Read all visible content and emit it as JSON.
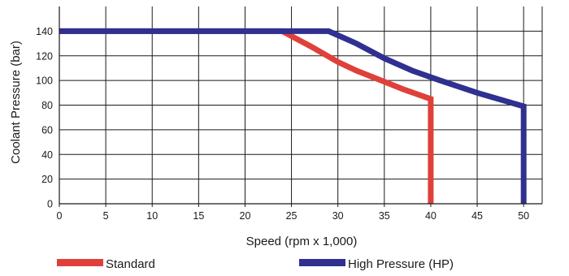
{
  "chart_data": {
    "type": "line",
    "xlabel": "Speed (rpm x 1,000)",
    "ylabel": "Coolant Pressure (bar)",
    "xlim": [
      0,
      52
    ],
    "ylim": [
      0,
      160
    ],
    "x_ticks": [
      0,
      5,
      10,
      15,
      20,
      25,
      30,
      35,
      40,
      45,
      50
    ],
    "y_ticks": [
      0,
      20,
      40,
      60,
      80,
      100,
      120,
      140
    ],
    "grid": true,
    "legend_position": "bottom",
    "series": [
      {
        "name": "Standard",
        "color": "#e0403a",
        "points": [
          [
            0,
            140
          ],
          [
            24,
            140
          ],
          [
            27,
            128
          ],
          [
            30,
            115
          ],
          [
            32,
            108
          ],
          [
            35,
            99
          ],
          [
            37,
            93
          ],
          [
            40,
            85
          ],
          [
            40,
            0
          ]
        ]
      },
      {
        "name": "High Pressure (HP)",
        "color": "#2f3090",
        "points": [
          [
            0,
            140
          ],
          [
            29,
            140
          ],
          [
            32,
            130
          ],
          [
            35,
            118
          ],
          [
            38,
            108
          ],
          [
            41,
            100
          ],
          [
            45,
            90
          ],
          [
            50,
            79
          ],
          [
            50,
            0
          ]
        ]
      }
    ]
  }
}
